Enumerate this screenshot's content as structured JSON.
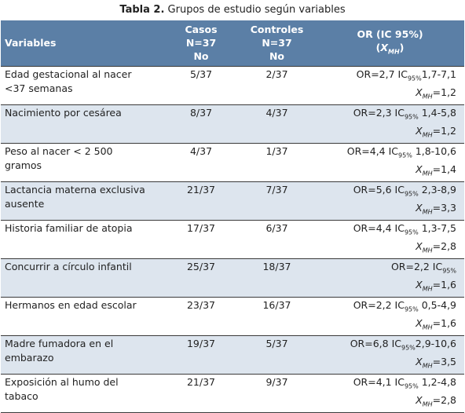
{
  "caption": {
    "label": "Tabla 2.",
    "text": "Grupos de estudio según variables"
  },
  "header": {
    "variables": "Variables",
    "casos": [
      "Casos",
      "N=37",
      "No"
    ],
    "controles": [
      "Controles",
      "N=37",
      "No"
    ],
    "or": [
      "OR (IC 95%)",
      "X",
      "MH",
      ")"
    ],
    "or_open": "("
  },
  "rows": [
    {
      "variable": [
        "Edad gestacional al nacer",
        "<37 semanas"
      ],
      "casos": "5/37",
      "controles": "2/37",
      "or_line1": "OR=2,7  IC",
      "ic": "95%",
      "or_ci": "1,7-7,1",
      "xmh": "=1,2"
    },
    {
      "variable": [
        "Nacimiento por cesárea",
        ""
      ],
      "casos": "8/37",
      "controles": "4/37",
      "or_line1": "OR=2,3  IC",
      "ic": "95%",
      "or_ci": " 1,4-5,8",
      "xmh": "=1,2"
    },
    {
      "variable": [
        "Peso al nacer < 2 500",
        "gramos"
      ],
      "casos": "4/37",
      "controles": "1/37",
      "or_line1": "OR=4,4  IC",
      "ic": "95%",
      "or_ci": " 1,8-10,6",
      "xmh": "=1,4"
    },
    {
      "variable": [
        "Lactancia materna exclusiva",
        "ausente"
      ],
      "casos": "21/37",
      "controles": "7/37",
      "or_line1": "OR=5,6  IC",
      "ic": "95%",
      "or_ci": " 2,3-8,9",
      "xmh": "=3,3"
    },
    {
      "variable": [
        "Historia familiar de atopia",
        ""
      ],
      "casos": "17/37",
      "controles": "6/37",
      "or_line1": "OR=4,4  IC",
      "ic": "95%",
      "or_ci": " 1,3-7,5",
      "xmh": "=2,8"
    },
    {
      "variable": [
        "Concurrir a círculo infantil",
        ""
      ],
      "casos": "25/37",
      "controles": "18/37",
      "or_line1": "OR=2,2  IC",
      "ic": "95%",
      "or_ci": "",
      "xmh": "=1,6"
    },
    {
      "variable": [
        "Hermanos en edad escolar",
        ""
      ],
      "casos": "23/37",
      "controles": "16/37",
      "or_line1": "OR=2,2  IC",
      "ic": "95%",
      "or_ci": " 0,5-4,9",
      "xmh": "=1,6"
    },
    {
      "variable": [
        "Madre fumadora en el",
        "embarazo"
      ],
      "casos": "19/37",
      "controles": "5/37",
      "or_line1": "OR=6,8  IC",
      "ic": "95%",
      "or_ci": "2,9-10,6",
      "xmh": "=3,5"
    },
    {
      "variable": [
        "Exposición al humo del",
        "tabaco"
      ],
      "casos": "21/37",
      "controles": "9/37",
      "or_line1": "OR=4,1  IC",
      "ic": "95%",
      "or_ci": " 1,2-4,8",
      "xmh": "=2,8"
    }
  ],
  "colors": {
    "header_bg": "#5b7fa6",
    "stripe": "#dde5ee",
    "rule": "#3a3a3a"
  }
}
